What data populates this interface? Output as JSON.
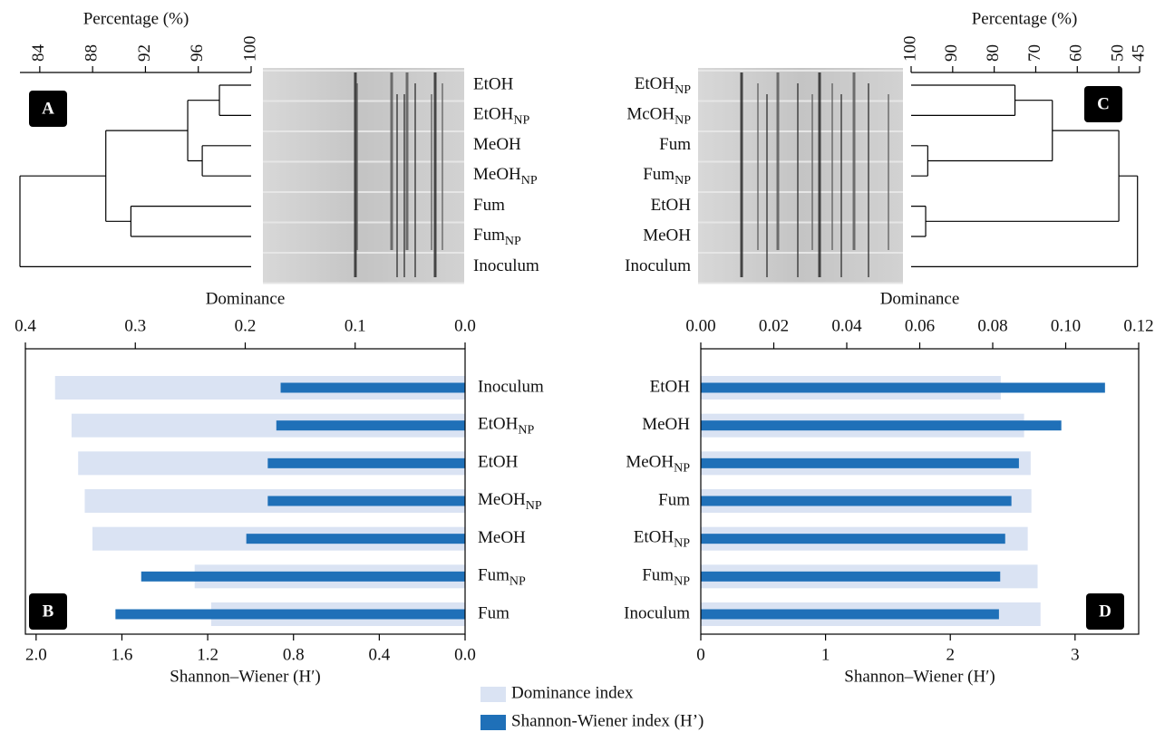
{
  "chart_data": [
    {
      "type": "dendrogram",
      "panel": "A",
      "xlabel": "Percentage (%)",
      "xlim": [
        82.5,
        100
      ],
      "xticks": [
        84,
        88,
        92,
        96,
        100
      ],
      "leaves": [
        "EtOH",
        {
          "main": "EtOH",
          "sub": "NP"
        },
        "MeOH",
        {
          "main": "MeOH",
          "sub": "NP"
        },
        "Fum",
        {
          "main": "Fum",
          "sub": "NP"
        },
        "Inoculum"
      ],
      "tree": {
        "height": 82.5,
        "children": [
          {
            "height": 89.0,
            "children": [
              {
                "height": 95.2,
                "children": [
                  {
                    "height": 97.6,
                    "children": [
                      0,
                      1
                    ]
                  },
                  {
                    "height": 96.3,
                    "children": [
                      2,
                      3
                    ]
                  }
                ]
              },
              {
                "height": 90.9,
                "children": [
                  4,
                  5
                ]
              }
            ]
          },
          6
        ]
      }
    },
    {
      "type": "dendrogram",
      "panel": "C",
      "xlabel": "Percentage (%)",
      "xlim": [
        100,
        45
      ],
      "xticks": [
        100,
        90,
        80,
        70,
        60,
        50,
        45
      ],
      "leaves": [
        {
          "main": "EtOH",
          "sub": "NP"
        },
        {
          "main": "McOH",
          "sub": "NP"
        },
        "Fum",
        {
          "main": "Fum",
          "sub": "NP"
        },
        "EtOH",
        "MeOH",
        "Inoculum"
      ],
      "tree": {
        "height": 45.5,
        "children": [
          {
            "height": 50,
            "children": [
              {
                "height": 66,
                "children": [
                  {
                    "height": 75,
                    "children": [
                      0,
                      1
                    ]
                  },
                  {
                    "height": 96,
                    "children": [
                      2,
                      3
                    ]
                  }
                ]
              },
              {
                "height": 96.5,
                "children": [
                  4,
                  5
                ]
              }
            ]
          },
          6
        ]
      }
    },
    {
      "type": "bar",
      "panel": "B",
      "orientation": "horizontal",
      "categories": [
        "Inoculum",
        {
          "main": "EtOH",
          "sub": "NP"
        },
        "EtOH",
        {
          "main": "MeOH",
          "sub": "NP"
        },
        "MeOH",
        {
          "main": "Fum",
          "sub": "NP"
        },
        "Fum"
      ],
      "xlabel": "Shannon–Wiener (H′)",
      "xlim": [
        2.05,
        0
      ],
      "xticks": [
        {
          "value": 2,
          "label": "2.0"
        },
        1.6,
        1.2,
        0.8,
        0.4,
        {
          "value": 0,
          "label": "0.0"
        }
      ],
      "x2label": "Dominance",
      "x2lim": [
        0.4,
        0
      ],
      "x2ticks": [
        0.4,
        0.3,
        0.2,
        0.1,
        {
          "value": 0,
          "label": "0.0"
        }
      ],
      "series": [
        {
          "color": "#dae3f3",
          "axis": "x2",
          "values": [
            0.373,
            0.358,
            0.352,
            0.346,
            0.339,
            0.246,
            0.231
          ]
        },
        {
          "color": "#1f70b8",
          "values": [
            0.86,
            0.88,
            0.92,
            0.92,
            1.02,
            1.51,
            1.63
          ]
        }
      ]
    },
    {
      "type": "bar",
      "panel": "D",
      "orientation": "horizontal",
      "categories": [
        "EtOH",
        "MeOH",
        {
          "main": "MeOH",
          "sub": "NP"
        },
        "Fum",
        {
          "main": "EtOH",
          "sub": "NP"
        },
        {
          "main": "Fum",
          "sub": "NP"
        },
        "Inoculum"
      ],
      "xlabel": "Shannon–Wiener (H′)",
      "xlim": [
        0,
        3.51
      ],
      "xticks": [
        0,
        1,
        2,
        3
      ],
      "x2label": "Dominance",
      "x2lim": [
        0,
        0.12
      ],
      "x2ticks": [
        {
          "value": 0,
          "label": "0.00"
        },
        0.02,
        0.04,
        0.06,
        {
          "value": 0.08,
          "label": "0.08"
        },
        {
          "value": 0.1,
          "label": "0.10"
        },
        0.12
      ],
      "legend": "bottom",
      "series": [
        {
          "name": "Dominance index",
          "color": "#dae3f3",
          "axis": "x2",
          "values": [
            0.0822,
            0.0886,
            0.0904,
            0.0906,
            0.0896,
            0.0923,
            0.0931
          ]
        },
        {
          "name": "Shannon-Wiener index (H’)",
          "color": "#1f70b8",
          "values": [
            3.24,
            2.89,
            2.55,
            2.49,
            2.44,
            2.4,
            2.39
          ]
        }
      ]
    }
  ]
}
